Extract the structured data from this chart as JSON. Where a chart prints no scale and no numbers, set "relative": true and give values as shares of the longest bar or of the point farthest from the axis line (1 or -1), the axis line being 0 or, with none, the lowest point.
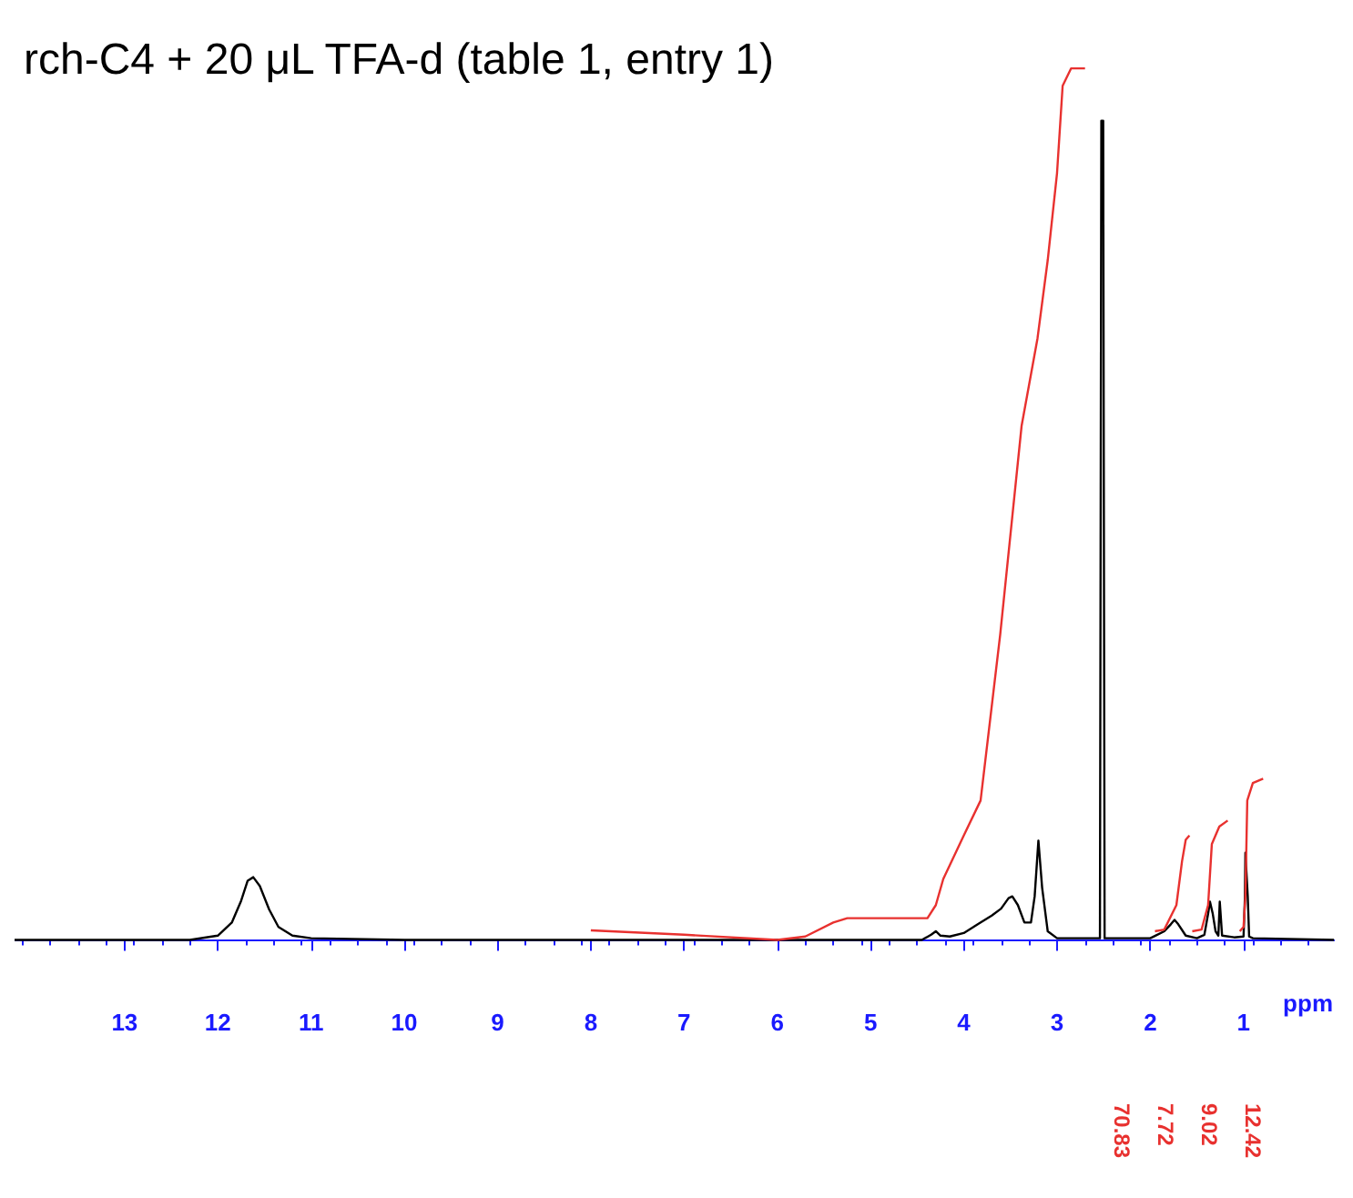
{
  "chart_data": {
    "type": "line",
    "title": "rch-C4 + 20 μL TFA-d (table 1, entry 1)",
    "xlabel": "ppm",
    "relative": true,
    "xlim": [
      14.18,
      0.03
    ],
    "xticks": [
      13,
      12,
      11,
      10,
      9,
      8,
      7,
      6,
      5,
      4,
      3,
      2,
      1
    ],
    "grid": false,
    "marker": "none",
    "line_style": "solid",
    "series": [
      {
        "color": "#000000",
        "x": [
          14.18,
          12.3,
          12.0,
          11.85,
          11.75,
          11.68,
          11.62,
          11.55,
          11.45,
          11.35,
          11.2,
          11.0,
          10.0,
          4.45,
          4.35,
          4.3,
          4.25,
          4.15,
          4.0,
          3.85,
          3.7,
          3.6,
          3.52,
          3.48,
          3.42,
          3.35,
          3.28,
          3.24,
          3.2,
          3.16,
          3.1,
          3.0,
          2.54,
          2.525,
          2.515,
          2.505,
          2.49,
          2.0,
          1.85,
          1.78,
          1.74,
          1.7,
          1.62,
          1.5,
          1.42,
          1.38,
          1.36,
          1.33,
          1.3,
          1.27,
          1.255,
          1.245,
          1.23,
          1.1,
          1.0,
          0.985,
          0.98,
          0.97,
          0.955,
          0.94,
          0.9,
          0.03
        ],
        "values": [
          0,
          0,
          0.005,
          0.02,
          0.045,
          0.068,
          0.072,
          0.062,
          0.035,
          0.015,
          0.005,
          0.002,
          0,
          0,
          0.006,
          0.01,
          0.005,
          0.004,
          0.008,
          0.018,
          0.028,
          0.036,
          0.048,
          0.05,
          0.04,
          0.02,
          0.02,
          0.05,
          0.114,
          0.06,
          0.01,
          0.002,
          0.002,
          0.94,
          0.94,
          0.94,
          0.002,
          0.002,
          0.01,
          0.018,
          0.023,
          0.018,
          0.005,
          0.002,
          0.006,
          0.03,
          0.044,
          0.03,
          0.01,
          0.005,
          0.044,
          0.044,
          0.005,
          0.003,
          0.004,
          0.05,
          0.1,
          0.1,
          0.05,
          0.004,
          0.002,
          0
        ]
      },
      {
        "color": "#e8312f",
        "x": [
          8.0,
          7.0,
          6.0,
          5.7,
          5.4,
          5.25,
          4.8,
          4.39,
          4.3,
          4.22,
          4.0,
          3.82,
          3.61,
          3.38,
          3.21,
          3.1,
          3.0,
          2.94,
          2.85,
          2.7
        ],
        "values": [
          0.011,
          0.006,
          0,
          0.004,
          0.02,
          0.025,
          0.025,
          0.025,
          0.04,
          0.07,
          0.12,
          0.16,
          0.35,
          0.59,
          0.69,
          0.78,
          0.88,
          0.98,
          1.0,
          1.0
        ]
      },
      {
        "color": "#e8312f",
        "x": [
          1.95,
          1.85,
          1.72,
          1.66,
          1.62,
          1.58
        ],
        "values": [
          0.01,
          0.012,
          0.04,
          0.09,
          0.115,
          0.12
        ]
      },
      {
        "color": "#e8312f",
        "x": [
          1.55,
          1.45,
          1.38,
          1.34,
          1.26,
          1.17
        ],
        "values": [
          0.01,
          0.012,
          0.04,
          0.11,
          0.13,
          0.137
        ]
      },
      {
        "color": "#e8312f",
        "x": [
          1.04,
          1.0,
          0.98,
          0.96,
          0.9,
          0.79
        ],
        "values": [
          0.01,
          0.015,
          0.05,
          0.16,
          0.18,
          0.185
        ]
      }
    ],
    "annotations": [
      "70.83",
      "7.72",
      "9.02",
      "12.42"
    ]
  }
}
